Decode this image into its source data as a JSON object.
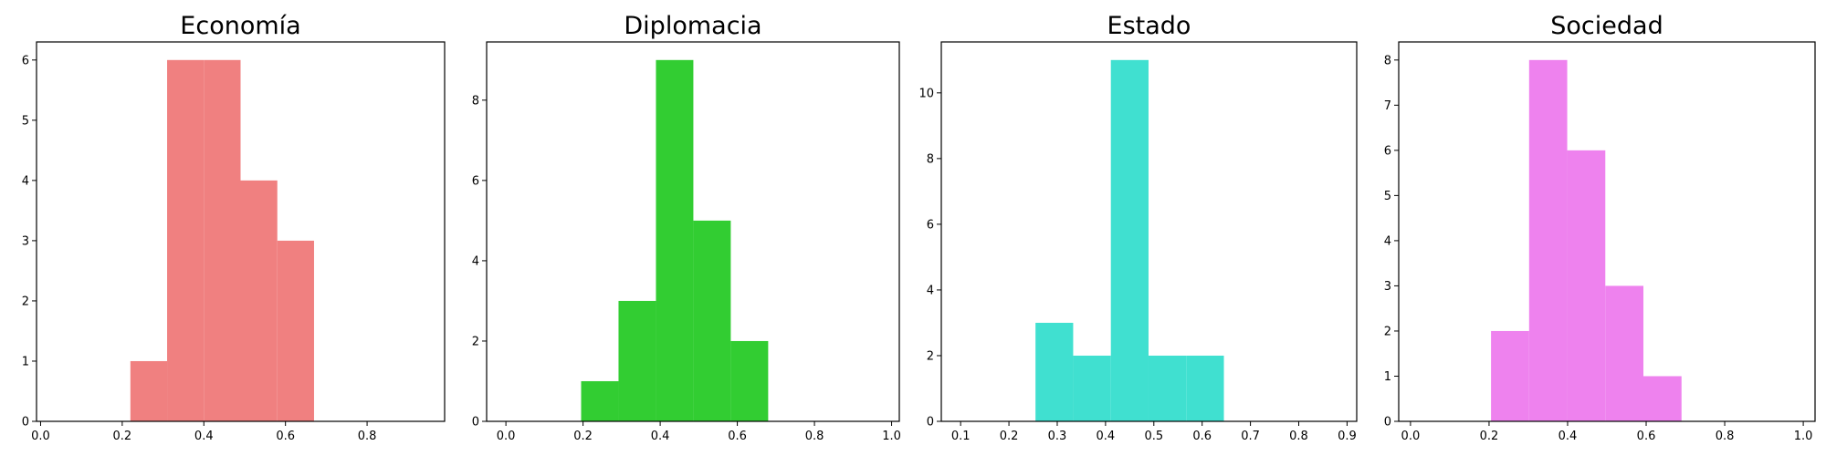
{
  "chart_data": [
    {
      "type": "bar",
      "title": "Economía",
      "color": "#f08080",
      "bins": [
        [
          0.22,
          0.31
        ],
        [
          0.31,
          0.4
        ],
        [
          0.4,
          0.49
        ],
        [
          0.49,
          0.58
        ],
        [
          0.58,
          0.67
        ]
      ],
      "values": [
        1,
        6,
        6,
        4,
        3
      ],
      "xlim": [
        -0.01,
        0.99
      ],
      "ylim": [
        0,
        6.3
      ],
      "xticks": [
        0.0,
        0.2,
        0.4,
        0.6,
        0.8
      ],
      "xtick_labels": [
        "0.0",
        "0.2",
        "0.4",
        "0.6",
        "0.8"
      ],
      "yticks": [
        0,
        1,
        2,
        3,
        4,
        5,
        6
      ],
      "ytick_labels": [
        "0",
        "1",
        "2",
        "3",
        "4",
        "5",
        "6"
      ]
    },
    {
      "type": "bar",
      "title": "Diplomacia",
      "color": "#32cd32",
      "bins": [
        [
          0.195,
          0.292
        ],
        [
          0.292,
          0.389
        ],
        [
          0.389,
          0.486
        ],
        [
          0.486,
          0.583
        ],
        [
          0.583,
          0.68
        ]
      ],
      "values": [
        1,
        3,
        9,
        5,
        2
      ],
      "xlim": [
        -0.05,
        1.02
      ],
      "ylim": [
        0,
        9.45
      ],
      "xticks": [
        0.0,
        0.2,
        0.4,
        0.6,
        0.8,
        1.0
      ],
      "xtick_labels": [
        "0.0",
        "0.2",
        "0.4",
        "0.6",
        "0.8",
        "1.0"
      ],
      "yticks": [
        0,
        2,
        4,
        6,
        8
      ],
      "ytick_labels": [
        "0",
        "2",
        "4",
        "6",
        "8"
      ]
    },
    {
      "type": "bar",
      "title": "Estado",
      "color": "#40e0d0",
      "bins": [
        [
          0.255,
          0.333
        ],
        [
          0.333,
          0.411
        ],
        [
          0.411,
          0.489
        ],
        [
          0.489,
          0.567
        ],
        [
          0.567,
          0.645
        ]
      ],
      "values": [
        3,
        2,
        11,
        2,
        2
      ],
      "xlim": [
        0.06,
        0.92
      ],
      "ylim": [
        0,
        11.55
      ],
      "xticks": [
        0.1,
        0.2,
        0.3,
        0.4,
        0.5,
        0.6,
        0.7,
        0.8,
        0.9
      ],
      "xtick_labels": [
        "0.1",
        "0.2",
        "0.3",
        "0.4",
        "0.5",
        "0.6",
        "0.7",
        "0.8",
        "0.9"
      ],
      "yticks": [
        0,
        2,
        4,
        6,
        8,
        10
      ],
      "ytick_labels": [
        "0",
        "2",
        "4",
        "6",
        "8",
        "10"
      ]
    },
    {
      "type": "bar",
      "title": "Sociedad",
      "color": "#ee82ee",
      "bins": [
        [
          0.205,
          0.302
        ],
        [
          0.302,
          0.399
        ],
        [
          0.399,
          0.496
        ],
        [
          0.496,
          0.593
        ],
        [
          0.593,
          0.69
        ]
      ],
      "values": [
        2,
        8,
        6,
        3,
        1
      ],
      "xlim": [
        -0.03,
        1.03
      ],
      "ylim": [
        0,
        8.4
      ],
      "xticks": [
        0.0,
        0.2,
        0.4,
        0.6,
        0.8,
        1.0
      ],
      "xtick_labels": [
        "0.0",
        "0.2",
        "0.4",
        "0.6",
        "0.8",
        "1.0"
      ],
      "yticks": [
        0,
        1,
        2,
        3,
        4,
        5,
        6,
        7,
        8
      ],
      "ytick_labels": [
        "0",
        "1",
        "2",
        "3",
        "4",
        "5",
        "6",
        "7",
        "8"
      ]
    }
  ]
}
